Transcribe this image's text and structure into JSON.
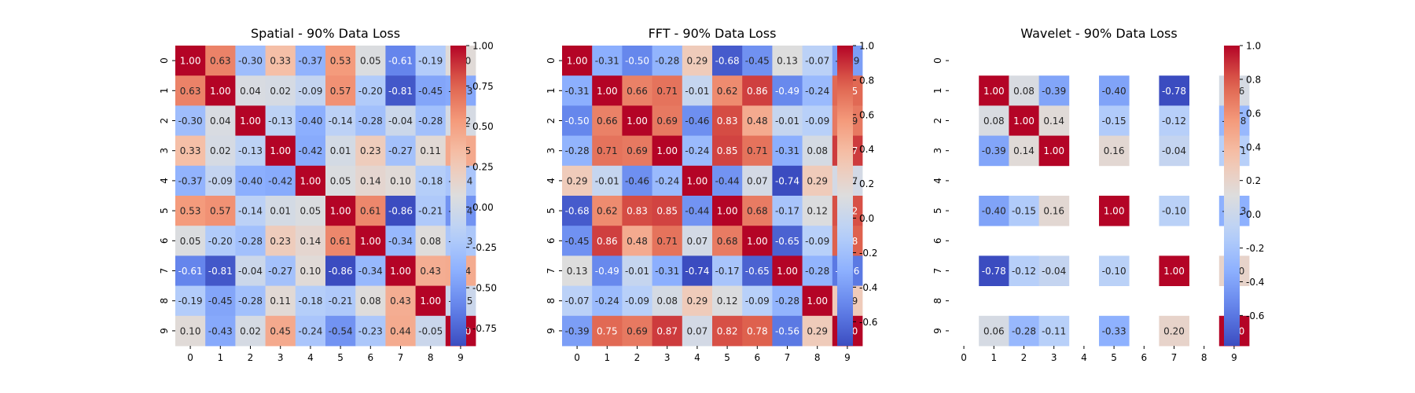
{
  "chart_data": [
    {
      "type": "heatmap",
      "title": "Spatial - 90% Data Loss",
      "xlabel": "",
      "ylabel": "",
      "x_categories": [
        "0",
        "1",
        "2",
        "3",
        "4",
        "5",
        "6",
        "7",
        "8",
        "9"
      ],
      "y_categories": [
        "0",
        "1",
        "2",
        "3",
        "4",
        "5",
        "6",
        "7",
        "8",
        "9"
      ],
      "matrix": [
        [
          1.0,
          0.63,
          -0.3,
          0.33,
          -0.37,
          0.53,
          0.05,
          -0.61,
          -0.19,
          0.1
        ],
        [
          0.63,
          1.0,
          0.04,
          0.02,
          -0.09,
          0.57,
          -0.2,
          -0.81,
          -0.45,
          -0.43
        ],
        [
          -0.3,
          0.04,
          1.0,
          -0.13,
          -0.4,
          -0.14,
          -0.28,
          -0.04,
          -0.28,
          0.02
        ],
        [
          0.33,
          0.02,
          -0.13,
          1.0,
          -0.42,
          0.01,
          0.23,
          -0.27,
          0.11,
          0.45
        ],
        [
          -0.37,
          -0.09,
          -0.4,
          -0.42,
          1.0,
          0.05,
          0.14,
          0.1,
          -0.18,
          -0.24
        ],
        [
          0.53,
          0.57,
          -0.14,
          0.01,
          0.05,
          1.0,
          0.61,
          -0.86,
          -0.21,
          -0.54
        ],
        [
          0.05,
          -0.2,
          -0.28,
          0.23,
          0.14,
          0.61,
          1.0,
          -0.34,
          0.08,
          -0.23
        ],
        [
          -0.61,
          -0.81,
          -0.04,
          -0.27,
          0.1,
          -0.86,
          -0.34,
          1.0,
          0.43,
          0.44
        ],
        [
          -0.19,
          -0.45,
          -0.28,
          0.11,
          -0.18,
          -0.21,
          0.08,
          0.43,
          1.0,
          -0.05
        ],
        [
          0.1,
          -0.43,
          0.02,
          0.45,
          -0.24,
          -0.54,
          -0.23,
          0.44,
          -0.05,
          1.0
        ]
      ],
      "vmin": -0.86,
      "vmax": 1.0,
      "colormap": "coolwarm",
      "colorbar_ticks": [
        "1.00",
        "0.75",
        "0.50",
        "0.25",
        "0.00",
        "-0.25",
        "-0.50",
        "-0.75"
      ]
    },
    {
      "type": "heatmap",
      "title": "FFT - 90% Data Loss",
      "xlabel": "",
      "ylabel": "",
      "x_categories": [
        "0",
        "1",
        "2",
        "3",
        "4",
        "5",
        "6",
        "7",
        "8",
        "9"
      ],
      "y_categories": [
        "0",
        "1",
        "2",
        "3",
        "4",
        "5",
        "6",
        "7",
        "8",
        "9"
      ],
      "matrix": [
        [
          1.0,
          -0.31,
          -0.5,
          -0.28,
          0.29,
          -0.68,
          -0.45,
          0.13,
          -0.07,
          -0.39
        ],
        [
          -0.31,
          1.0,
          0.66,
          0.71,
          -0.01,
          0.62,
          0.86,
          -0.49,
          -0.24,
          0.75
        ],
        [
          -0.5,
          0.66,
          1.0,
          0.69,
          -0.46,
          0.83,
          0.48,
          -0.01,
          -0.09,
          0.69
        ],
        [
          -0.28,
          0.71,
          0.69,
          1.0,
          -0.24,
          0.85,
          0.71,
          -0.31,
          0.08,
          0.87
        ],
        [
          0.29,
          -0.01,
          -0.46,
          -0.24,
          1.0,
          -0.44,
          0.07,
          -0.74,
          0.29,
          0.07
        ],
        [
          -0.68,
          0.62,
          0.83,
          0.85,
          -0.44,
          1.0,
          0.68,
          -0.17,
          0.12,
          0.82
        ],
        [
          -0.45,
          0.86,
          0.48,
          0.71,
          0.07,
          0.68,
          1.0,
          -0.65,
          -0.09,
          0.78
        ],
        [
          0.13,
          -0.49,
          -0.01,
          -0.31,
          -0.74,
          -0.17,
          -0.65,
          1.0,
          -0.28,
          -0.56
        ],
        [
          -0.07,
          -0.24,
          -0.09,
          0.08,
          0.29,
          0.12,
          -0.09,
          -0.28,
          1.0,
          0.29
        ],
        [
          -0.39,
          0.75,
          0.69,
          0.87,
          0.07,
          0.82,
          0.78,
          -0.56,
          0.29,
          1.0
        ]
      ],
      "vmin": -0.74,
      "vmax": 1.0,
      "colormap": "coolwarm",
      "colorbar_ticks": [
        "1.0",
        "0.8",
        "0.6",
        "0.4",
        "0.2",
        "0.0",
        "-0.2",
        "-0.4",
        "-0.6"
      ]
    },
    {
      "type": "heatmap",
      "title": "Wavelet - 90% Data Loss",
      "xlabel": "",
      "ylabel": "",
      "x_categories": [
        "0",
        "1",
        "2",
        "3",
        "4",
        "5",
        "6",
        "7",
        "8",
        "9"
      ],
      "y_categories": [
        "0",
        "1",
        "2",
        "3",
        "4",
        "5",
        "6",
        "7",
        "8",
        "9"
      ],
      "matrix": [
        [
          null,
          null,
          null,
          null,
          null,
          null,
          null,
          null,
          null,
          null
        ],
        [
          null,
          1.0,
          0.08,
          -0.39,
          null,
          -0.4,
          null,
          -0.78,
          null,
          0.06
        ],
        [
          null,
          0.08,
          1.0,
          0.14,
          null,
          -0.15,
          null,
          -0.12,
          null,
          -0.28
        ],
        [
          null,
          -0.39,
          0.14,
          1.0,
          null,
          0.16,
          null,
          -0.04,
          null,
          -0.11
        ],
        [
          null,
          null,
          null,
          null,
          null,
          null,
          null,
          null,
          null,
          null
        ],
        [
          null,
          -0.4,
          -0.15,
          0.16,
          null,
          1.0,
          null,
          -0.1,
          null,
          -0.33
        ],
        [
          null,
          null,
          null,
          null,
          null,
          null,
          null,
          null,
          null,
          null
        ],
        [
          null,
          -0.78,
          -0.12,
          -0.04,
          null,
          -0.1,
          null,
          1.0,
          null,
          0.2
        ],
        [
          null,
          null,
          null,
          null,
          null,
          null,
          null,
          null,
          null,
          null
        ],
        [
          null,
          0.06,
          -0.28,
          -0.11,
          null,
          -0.33,
          null,
          0.2,
          null,
          1.0
        ]
      ],
      "vmin": -0.78,
      "vmax": 1.0,
      "colormap": "coolwarm",
      "colorbar_ticks": [
        "1.0",
        "0.8",
        "0.6",
        "0.4",
        "0.2",
        "0.0",
        "-0.2",
        "-0.4",
        "-0.6"
      ]
    }
  ]
}
